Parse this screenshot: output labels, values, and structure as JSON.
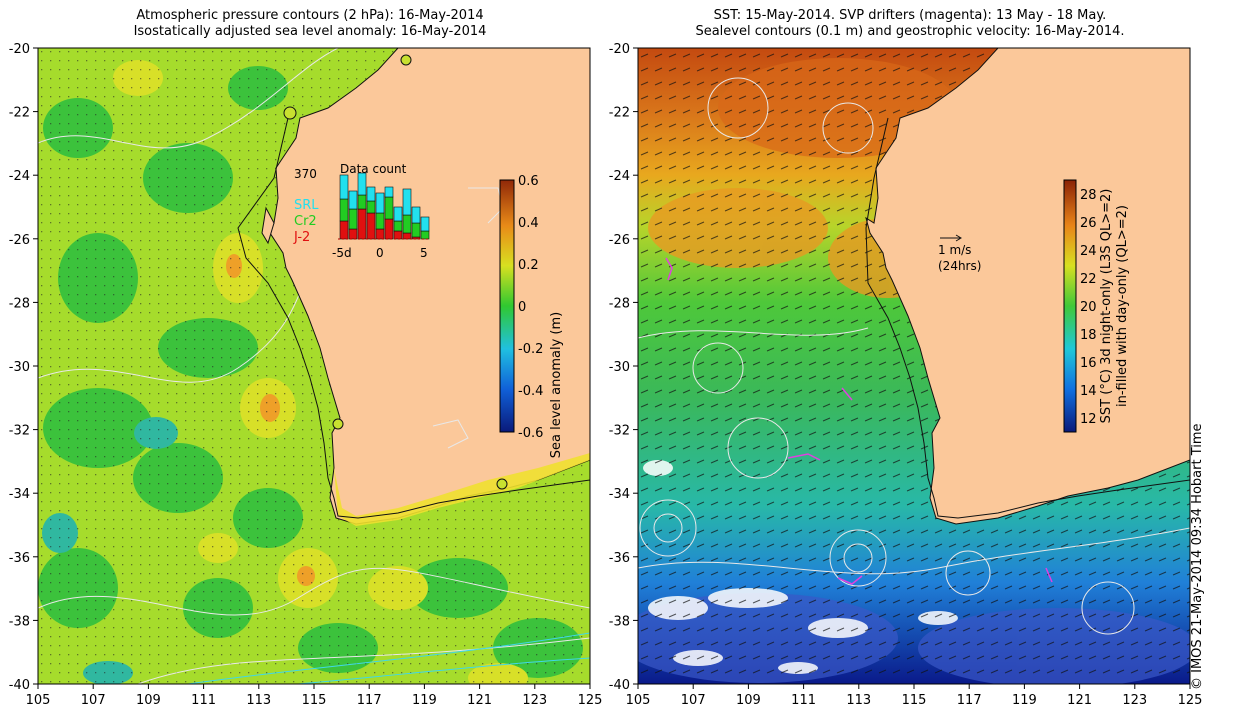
{
  "left_panel": {
    "title_line1": "Atmospheric pressure contours (2 hPa): 16-May-2014",
    "title_line2": "Isostatically adjusted sea level anomaly: 16-May-2014",
    "x_ticks": [
      "105",
      "107",
      "109",
      "111",
      "113",
      "115",
      "117",
      "119",
      "121",
      "123",
      "125"
    ],
    "y_ticks": [
      "-20",
      "-22",
      "-24",
      "-26",
      "-28",
      "-30",
      "-32",
      "-34",
      "-36",
      "-38",
      "-40"
    ],
    "colorbar": {
      "label": "Sea level anomaly (m)",
      "ticks": [
        "0.6",
        "0.4",
        "0.2",
        "0",
        "-0.2",
        "-0.4",
        "-0.6"
      ],
      "range": [
        -0.6,
        0.6
      ]
    },
    "inset": {
      "title": "Data count",
      "max_label": "370",
      "x_ticks": [
        "-5d",
        "0",
        "5"
      ],
      "legend": [
        {
          "label": "SRL",
          "color": "#22e0ee"
        },
        {
          "label": "Cr2",
          "color": "#22cc22"
        },
        {
          "label": "J-2",
          "color": "#e01010"
        }
      ]
    }
  },
  "right_panel": {
    "title_line1": "SST: 15-May-2014. SVP drifters (magenta): 13 May - 18 May.",
    "title_line2": "Sealevel contours (0.1 m) and geostrophic velocity: 16-May-2014.",
    "x_ticks": [
      "105",
      "107",
      "109",
      "111",
      "113",
      "115",
      "117",
      "119",
      "121",
      "123",
      "125"
    ],
    "y_ticks": [
      "-20",
      "-22",
      "-24",
      "-26",
      "-28",
      "-30",
      "-32",
      "-34",
      "-36",
      "-38",
      "-40"
    ],
    "scale_label_1": "1 m/s",
    "scale_label_2": "(24hrs)",
    "colorbar": {
      "label_line1": "SST (°C) 3d night-only (L3S QL>=2)",
      "label_line2": "in-filled with day-only (QL>=2)",
      "ticks": [
        "28",
        "26",
        "24",
        "22",
        "20",
        "18",
        "16",
        "14",
        "12"
      ],
      "range": [
        11,
        29
      ]
    }
  },
  "copyright": "© IMOS 21-May-2014 09:34 Hobart Time",
  "colors": {
    "land": "#fbc89a",
    "sst_warm": "#c44a10",
    "sst_mid": "#4ec83a",
    "sst_cold": "#0a1a8a",
    "sla_base": "#9fd82a"
  }
}
